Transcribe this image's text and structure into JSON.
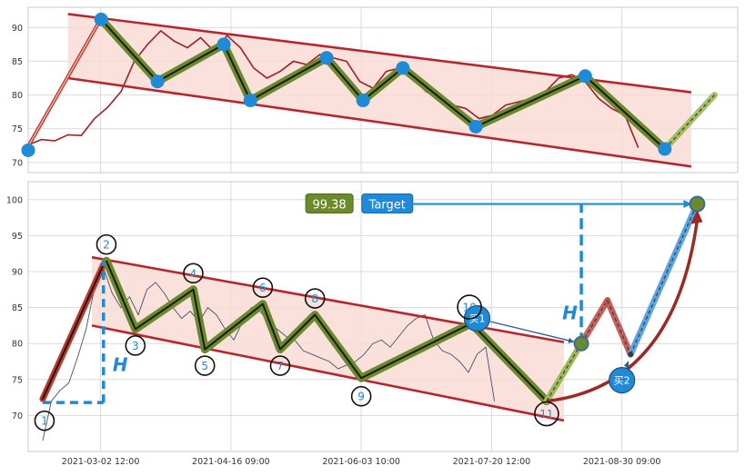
{
  "chart_data": [
    {
      "type": "line",
      "title": "",
      "ylim": [
        68.5,
        93
      ],
      "yticks": [
        70,
        75,
        80,
        85,
        90
      ],
      "grid": true,
      "price_series": {
        "x": [
          0,
          4,
          8,
          12,
          16,
          20,
          24,
          28,
          32,
          36,
          40,
          44,
          48,
          52,
          56,
          60,
          64,
          68,
          72,
          76,
          80,
          84,
          88,
          92,
          96,
          100,
          104,
          108,
          112,
          116,
          120,
          124,
          128,
          132,
          136,
          140,
          144,
          148,
          152,
          156,
          160,
          164,
          168,
          172,
          176,
          180,
          184
        ],
        "y": [
          72.6,
          73.4,
          73.2,
          74.1,
          74.0,
          76.5,
          78.2,
          80.5,
          85.0,
          87.5,
          89.5,
          88.0,
          87.0,
          88.5,
          86.5,
          88.8,
          87.0,
          84.0,
          82.5,
          83.5,
          85.0,
          84.5,
          86.0,
          85.5,
          85.0,
          82.0,
          81.0,
          83.5,
          84.0,
          82.5,
          80.5,
          79.5,
          78.5,
          78.0,
          76.5,
          77.0,
          78.5,
          79.0,
          79.5,
          80.5,
          82.5,
          83.0,
          82.0,
          79.5,
          78.0,
          77.0,
          72.2
        ]
      },
      "pivots": [
        {
          "x": 0,
          "y": 71.8
        },
        {
          "x": 22,
          "y": 91.2
        },
        {
          "x": 39,
          "y": 82.0
        },
        {
          "x": 59,
          "y": 87.5
        },
        {
          "x": 67,
          "y": 79.2
        },
        {
          "x": 90,
          "y": 85.5
        },
        {
          "x": 101,
          "y": 79.2
        },
        {
          "x": 113,
          "y": 84.0
        },
        {
          "x": 135,
          "y": 75.3
        },
        {
          "x": 168,
          "y": 82.8
        },
        {
          "x": 192,
          "y": 72.0
        }
      ],
      "projection": [
        {
          "x": 192,
          "y": 72.0
        },
        {
          "x": 207,
          "y": 80.0
        }
      ],
      "channel_upper": [
        {
          "x": 12,
          "y": 92.0
        },
        {
          "x": 200,
          "y": 80.4
        }
      ],
      "channel_lower": [
        {
          "x": 12,
          "y": 82.5
        },
        {
          "x": 200,
          "y": 69.4
        }
      ],
      "lead_in": [
        {
          "x": 0,
          "y": 72.4
        },
        {
          "x": 21,
          "y": 90.5
        }
      ]
    },
    {
      "type": "line",
      "title": "",
      "ylim": [
        65,
        102.5
      ],
      "yticks": [
        70,
        75,
        80,
        85,
        90,
        95,
        100
      ],
      "grid": true,
      "xticks": [
        {
          "x": 20,
          "label": "2021-03-02 12:00"
        },
        {
          "x": 65,
          "label": "2021-04-16 09:00"
        },
        {
          "x": 110,
          "label": "2021-06-03 10:00"
        },
        {
          "x": 155,
          "label": "2021-07-20 12:00"
        },
        {
          "x": 200,
          "label": "2021-08-30 09:00"
        }
      ],
      "price_series": {
        "x": [
          0,
          3,
          6,
          9,
          12,
          15,
          18,
          21,
          24,
          27,
          30,
          33,
          36,
          39,
          42,
          45,
          48,
          51,
          54,
          57,
          60,
          63,
          66,
          69,
          72,
          75,
          78,
          81,
          84,
          87,
          90,
          93,
          96,
          99,
          102,
          105,
          108,
          111,
          114,
          117,
          120,
          123,
          126,
          129,
          132,
          135,
          138,
          141,
          144,
          147,
          150,
          153,
          156
        ],
        "y": [
          66.5,
          72.0,
          73.5,
          74.5,
          78.0,
          82.0,
          88.0,
          90.5,
          87.0,
          85.0,
          86.5,
          84.0,
          87.5,
          88.5,
          87.0,
          85.0,
          83.5,
          84.5,
          83.0,
          85.0,
          84.0,
          82.0,
          80.5,
          83.0,
          85.0,
          84.5,
          83.0,
          82.0,
          81.0,
          80.5,
          79.0,
          78.5,
          78.0,
          77.5,
          76.5,
          77.0,
          77.5,
          78.5,
          80.0,
          80.5,
          79.5,
          81.0,
          82.5,
          83.5,
          84.0,
          80.5,
          79.0,
          78.5,
          77.5,
          76.0,
          78.5,
          79.5,
          72.0
        ]
      },
      "pivots": [
        {
          "x": 0,
          "y": 71.8,
          "label": "1"
        },
        {
          "x": 22,
          "y": 91.5,
          "label": "2"
        },
        {
          "x": 32,
          "y": 82.0,
          "label": "3"
        },
        {
          "x": 52,
          "y": 87.5,
          "label": "4"
        },
        {
          "x": 56,
          "y": 79.2,
          "label": "5"
        },
        {
          "x": 76,
          "y": 85.5,
          "label": "6"
        },
        {
          "x": 82,
          "y": 79.2,
          "label": "7"
        },
        {
          "x": 94,
          "y": 84.0,
          "label": "8"
        },
        {
          "x": 110,
          "y": 75.2,
          "label": "9"
        },
        {
          "x": 148,
          "y": 82.8,
          "label": "10"
        },
        {
          "x": 174,
          "y": 72.0,
          "label": "11"
        }
      ],
      "channel_upper": [
        {
          "x": 17,
          "y": 92.0
        },
        {
          "x": 180,
          "y": 80.2
        }
      ],
      "channel_lower": [
        {
          "x": 17,
          "y": 82.5
        },
        {
          "x": 180,
          "y": 69.3
        }
      ],
      "lead_in": [
        {
          "x": 0,
          "y": 72.3
        },
        {
          "x": 21,
          "y": 91.0
        }
      ],
      "projection_path": [
        {
          "x": 174,
          "y": 72.0
        },
        {
          "x": 186,
          "y": 80.0
        },
        {
          "x": 195,
          "y": 86.0
        },
        {
          "x": 203,
          "y": 78.5
        },
        {
          "x": 226,
          "y": 99.4
        }
      ],
      "height_marker_left": {
        "x": 21,
        "y_bottom": 71.8,
        "y_top": 91.5,
        "label": "H"
      },
      "height_marker_right": {
        "x": 186,
        "y_bottom": 80.0,
        "y_top": 99.4,
        "label": "H"
      },
      "buy_markers": [
        {
          "label": "买1",
          "x": 150,
          "y": 83.5,
          "target_x": 186,
          "target_y": 80.0
        },
        {
          "label": "买2",
          "x": 200,
          "y": 74.9,
          "target_x": 203,
          "target_y": 78.5
        }
      ],
      "target_price": 99.38,
      "target_label": "Target",
      "target_point": {
        "x": 226,
        "y": 99.4
      }
    }
  ],
  "colors": {
    "price": "#a31f24",
    "channel_line": "#b5272d",
    "channel_fill": "#f9dcd6",
    "zigzag_inner": "#1a1a1a",
    "zigzag_outer": "#6b8a2b",
    "pivot_dot": "#1f8ad6",
    "lead_in_outer": "#c0392b",
    "height_marker": "#1f8ad6",
    "target_badge": "#6b8a2b",
    "target_button": "#1f8ad6",
    "grid": "#d9d9d9",
    "axes_border": "#c8c8c8"
  }
}
